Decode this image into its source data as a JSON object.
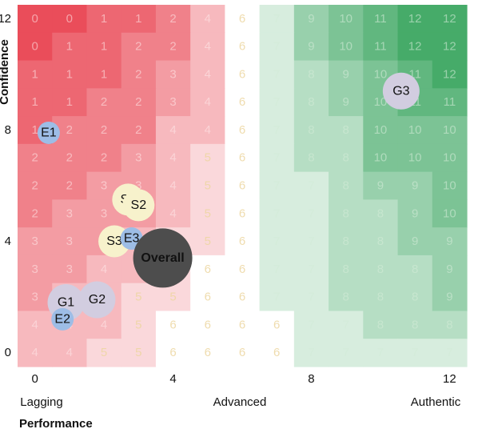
{
  "chart_data": {
    "type": "heatmap",
    "xlabel": "Performance",
    "ylabel": "Confidence",
    "xlim": [
      0,
      12
    ],
    "ylim": [
      0,
      12
    ],
    "x_ticks": [
      "0",
      "4",
      "8",
      "12"
    ],
    "y_ticks": [
      "0",
      "4",
      "8",
      "12"
    ],
    "x_categories": [
      "Lagging",
      "Advanced",
      "Authentic"
    ],
    "grid_note": "13 rows x 13 columns; rows listed from top (confidence 12) to bottom (confidence 0); columns from performance 0 to 12",
    "grid": [
      [
        0,
        0,
        1,
        1,
        2,
        4,
        6,
        7,
        9,
        10,
        11,
        12,
        12
      ],
      [
        0,
        1,
        1,
        2,
        2,
        4,
        6,
        7,
        9,
        10,
        11,
        12,
        12
      ],
      [
        1,
        1,
        1,
        2,
        3,
        4,
        6,
        7,
        8,
        9,
        10,
        11,
        12
      ],
      [
        1,
        1,
        2,
        2,
        3,
        4,
        6,
        7,
        8,
        9,
        10,
        11,
        11
      ],
      [
        1,
        2,
        2,
        2,
        4,
        4,
        6,
        7,
        8,
        8,
        10,
        10,
        10
      ],
      [
        2,
        2,
        2,
        3,
        4,
        5,
        6,
        7,
        8,
        8,
        10,
        10,
        10
      ],
      [
        2,
        2,
        3,
        3,
        4,
        5,
        6,
        7,
        7,
        8,
        9,
        9,
        10
      ],
      [
        2,
        3,
        3,
        3,
        4,
        5,
        6,
        7,
        7,
        8,
        8,
        9,
        10
      ],
      [
        3,
        3,
        3,
        4,
        5,
        5,
        6,
        7,
        7,
        8,
        8,
        9,
        9
      ],
      [
        3,
        3,
        4,
        4,
        5,
        6,
        6,
        7,
        7,
        8,
        8,
        8,
        9
      ],
      [
        3,
        4,
        4,
        5,
        5,
        6,
        6,
        7,
        7,
        8,
        8,
        8,
        9
      ],
      [
        4,
        4,
        4,
        5,
        6,
        6,
        6,
        6,
        7,
        7,
        8,
        8,
        8
      ],
      [
        4,
        4,
        5,
        5,
        6,
        6,
        6,
        6,
        7,
        7,
        7,
        7,
        7
      ]
    ],
    "points": [
      {
        "label": "G3",
        "x": 10.6,
        "y": 9.4,
        "color": "#d2cde0"
      },
      {
        "label": "E1",
        "x": 0.4,
        "y": 7.9,
        "color": "#9dbde6"
      },
      {
        "label": "S1",
        "x": 2.7,
        "y": 5.5,
        "color": "#f7f2cc"
      },
      {
        "label": "S2",
        "x": 3.0,
        "y": 5.3,
        "color": "#f7f2cc"
      },
      {
        "label": "S3",
        "x": 2.3,
        "y": 4.0,
        "color": "#f7f2cc"
      },
      {
        "label": "E3",
        "x": 2.8,
        "y": 4.1,
        "color": "#9dbde6"
      },
      {
        "label": "Overall",
        "x": 3.7,
        "y": 3.4,
        "color": "#4d4d4d",
        "bold": true,
        "text_color": "#ffffff"
      },
      {
        "label": "G1",
        "x": 0.9,
        "y": 1.8,
        "color": "#d2cde0"
      },
      {
        "label": "E2",
        "x": 0.8,
        "y": 1.2,
        "color": "#9dbde6"
      },
      {
        "label": "G2",
        "x": 1.8,
        "y": 1.9,
        "color": "#d2cde0"
      }
    ]
  }
}
